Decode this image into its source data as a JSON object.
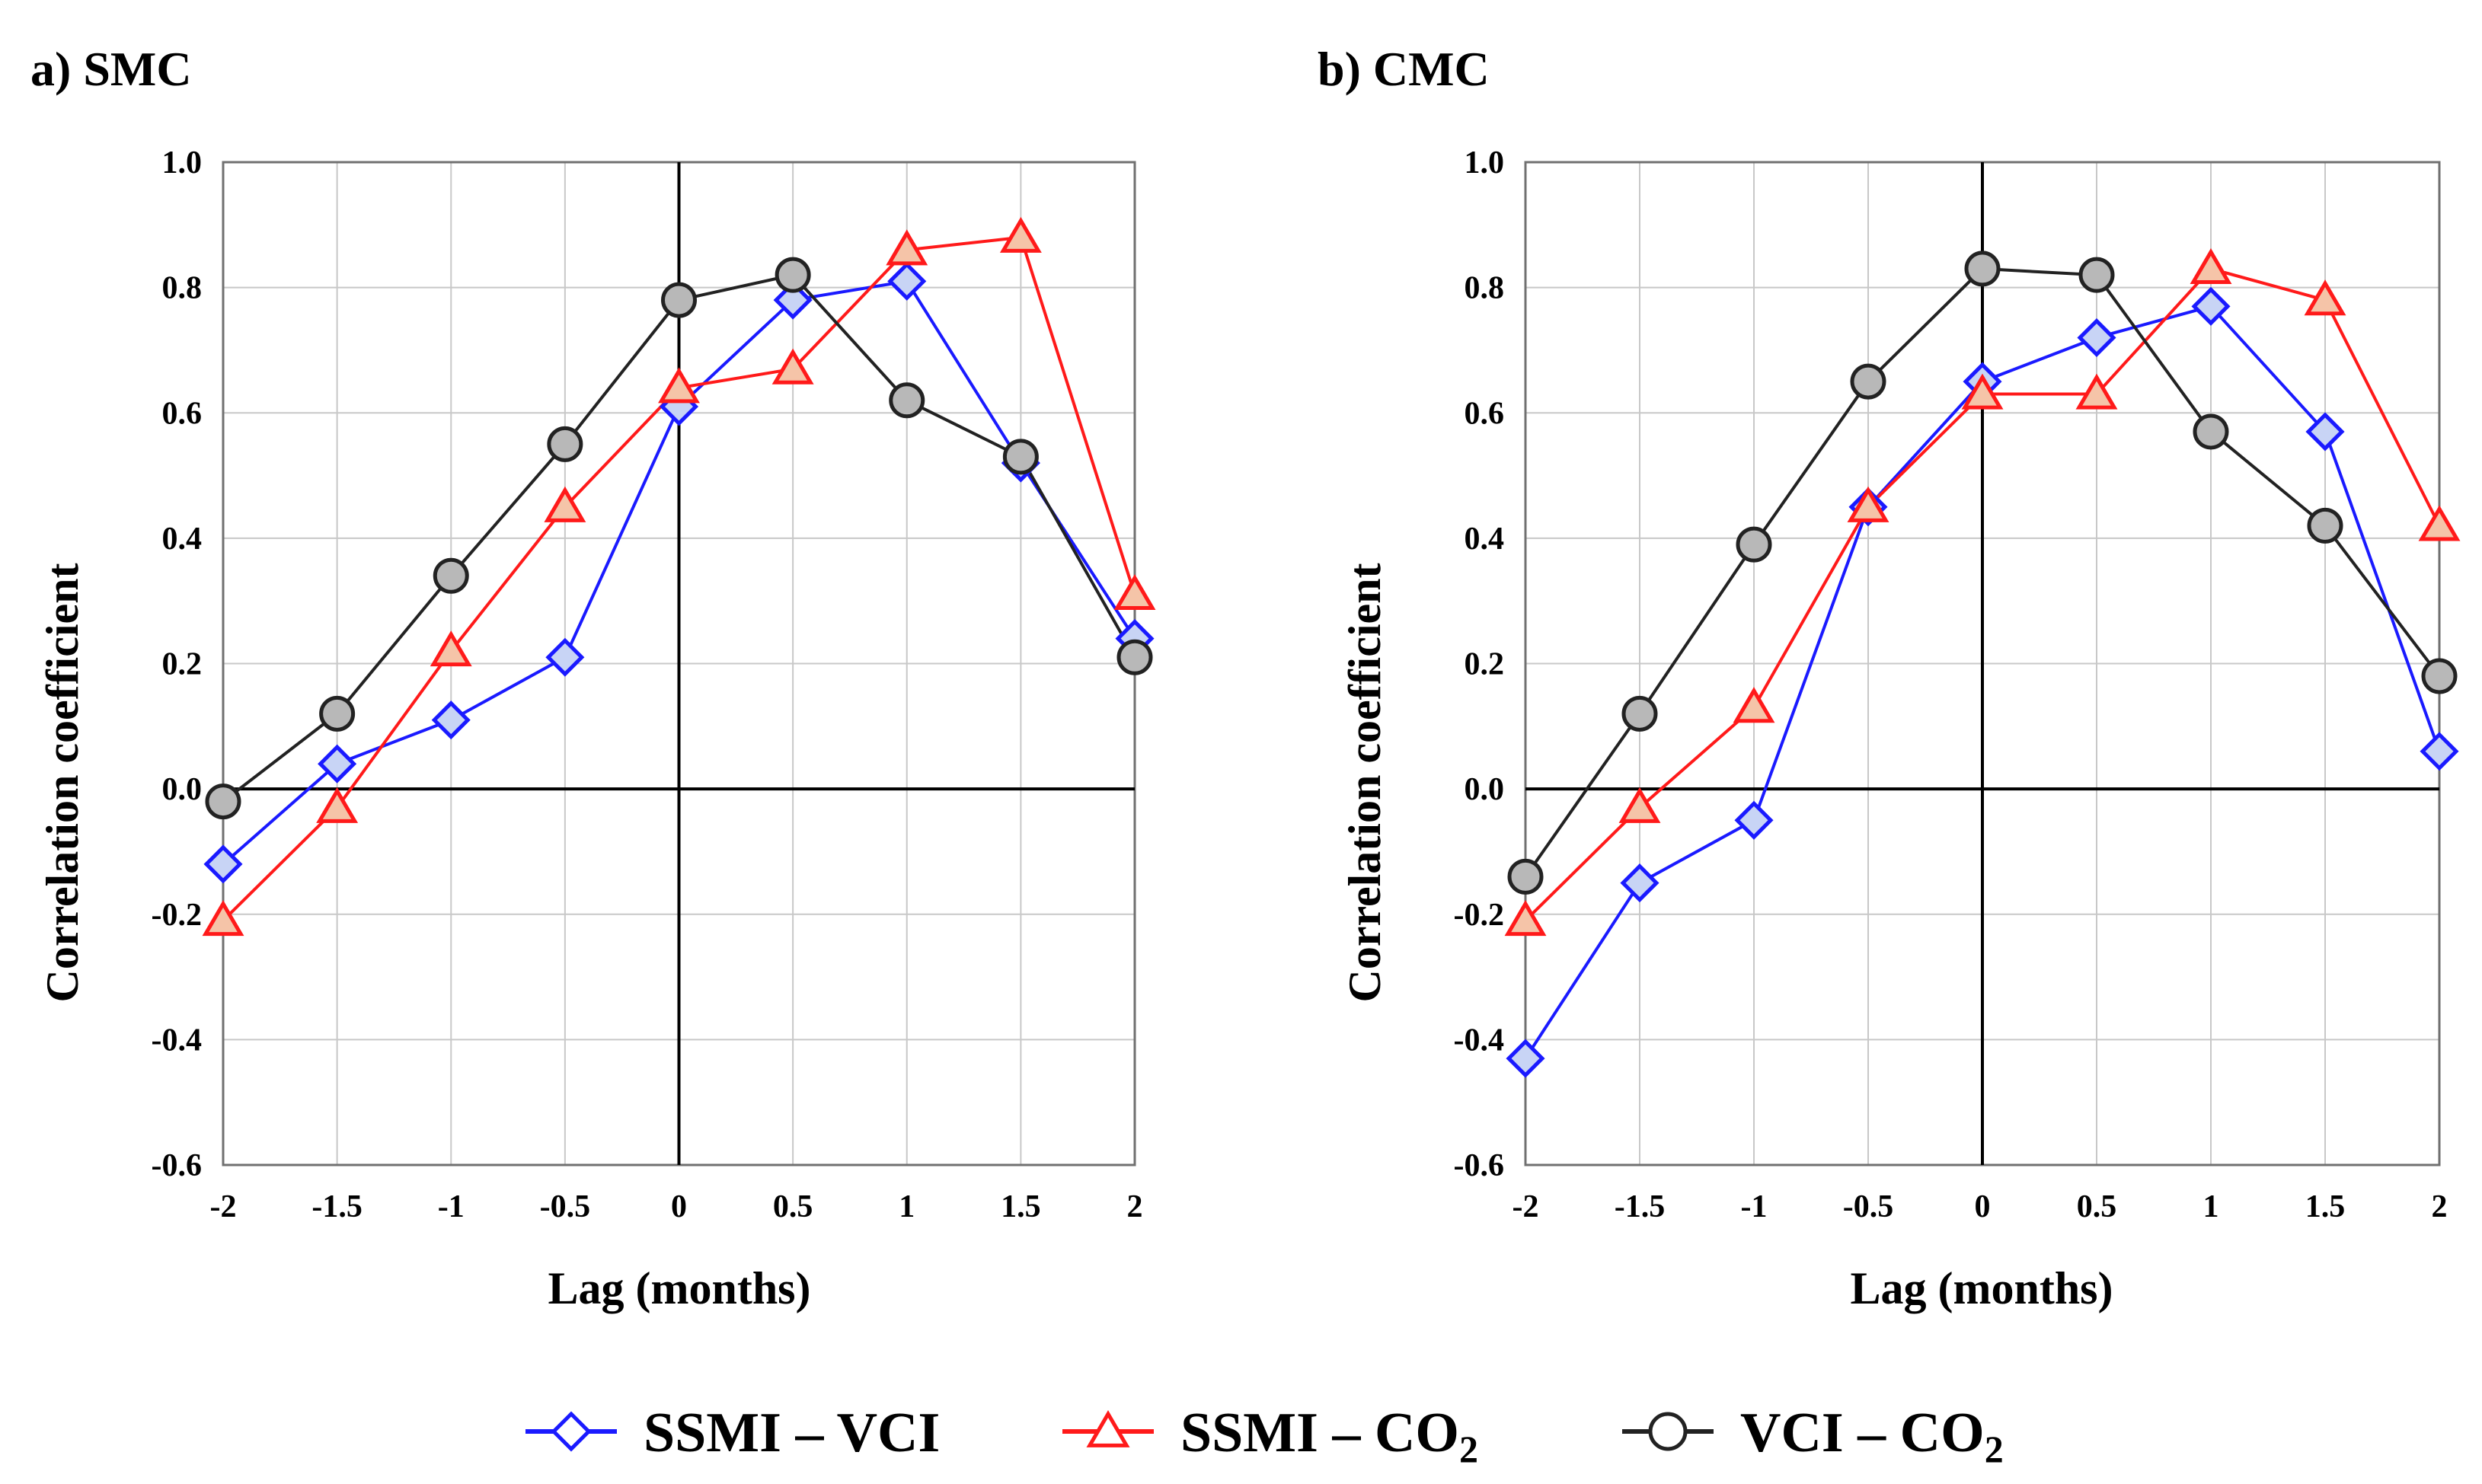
{
  "chart_data": [
    {
      "id": "smc",
      "type": "line",
      "title": "a) SMC",
      "xlabel": "Lag (months)",
      "ylabel": "Correlation  coefficient",
      "x": [
        -2,
        -1.5,
        -1,
        -0.5,
        0,
        0.5,
        1,
        1.5,
        2
      ],
      "x_tick_labels": [
        "-2",
        "-1.5",
        "-1",
        "-0.5",
        "0",
        "0.5",
        "1",
        "1.5",
        "2"
      ],
      "xlim": [
        -2,
        2
      ],
      "ylim": [
        -0.6,
        1.0
      ],
      "y_ticks": [
        1.0,
        0.8,
        0.6,
        0.4,
        0.2,
        0.0,
        -0.2,
        -0.4,
        -0.6
      ],
      "y_tick_labels": [
        "1.0",
        "0.8",
        "0.6",
        "0.4",
        "0.2",
        "0.0",
        "-0.2",
        "-0.4",
        "-0.6"
      ],
      "grid": true,
      "series": [
        {
          "key": "ssmi_vci",
          "values": [
            -0.12,
            0.04,
            0.11,
            0.21,
            0.61,
            0.78,
            0.81,
            0.52,
            0.24
          ]
        },
        {
          "key": "ssmi_co2",
          "values": [
            -0.21,
            -0.03,
            0.22,
            0.45,
            0.64,
            0.67,
            0.86,
            0.88,
            0.31
          ]
        },
        {
          "key": "vci_co2",
          "values": [
            -0.02,
            0.12,
            0.34,
            0.55,
            0.78,
            0.82,
            0.62,
            0.53,
            0.21
          ]
        }
      ]
    },
    {
      "id": "cmc",
      "type": "line",
      "title": "b) CMC",
      "xlabel": "Lag (months)",
      "ylabel": "Correlation  coefficient",
      "x": [
        -2,
        -1.5,
        -1,
        -0.5,
        0,
        0.5,
        1,
        1.5,
        2
      ],
      "x_tick_labels": [
        "-2",
        "-1.5",
        "-1",
        "-0.5",
        "0",
        "0.5",
        "1",
        "1.5",
        "2"
      ],
      "xlim": [
        -2,
        2
      ],
      "ylim": [
        -0.6,
        1.0
      ],
      "y_ticks": [
        1.0,
        0.8,
        0.6,
        0.4,
        0.2,
        0.0,
        -0.2,
        -0.4,
        -0.6
      ],
      "y_tick_labels": [
        "1.0",
        "0.8",
        "0.6",
        "0.4",
        "0.2",
        "0.0",
        "-0.2",
        "-0.4",
        "-0.6"
      ],
      "grid": true,
      "series": [
        {
          "key": "ssmi_vci",
          "values": [
            -0.43,
            -0.15,
            -0.05,
            0.45,
            0.65,
            0.72,
            0.77,
            0.57,
            0.06
          ]
        },
        {
          "key": "ssmi_co2",
          "values": [
            -0.21,
            -0.03,
            0.13,
            0.45,
            0.63,
            0.63,
            0.83,
            0.78,
            0.42
          ]
        },
        {
          "key": "vci_co2",
          "values": [
            -0.14,
            0.12,
            0.39,
            0.65,
            0.83,
            0.82,
            0.57,
            0.42,
            0.18
          ]
        }
      ]
    }
  ],
  "legend": {
    "placement": "bottom-center",
    "items": [
      {
        "key": "ssmi_vci",
        "label": "SSMI – VCI",
        "label_sub": "",
        "marker": "diamond",
        "line_color": "#1a1aff",
        "fill_color": "#c8d4f5"
      },
      {
        "key": "ssmi_co2",
        "label": "SSMI – CO",
        "label_sub": "2",
        "marker": "triangle",
        "line_color": "#ff1a1a",
        "fill_color": "#f5c4a8"
      },
      {
        "key": "vci_co2",
        "label": "VCI – CO",
        "label_sub": "2",
        "marker": "circle",
        "line_color": "#222222",
        "fill_color": "#b8b8b8"
      }
    ]
  }
}
